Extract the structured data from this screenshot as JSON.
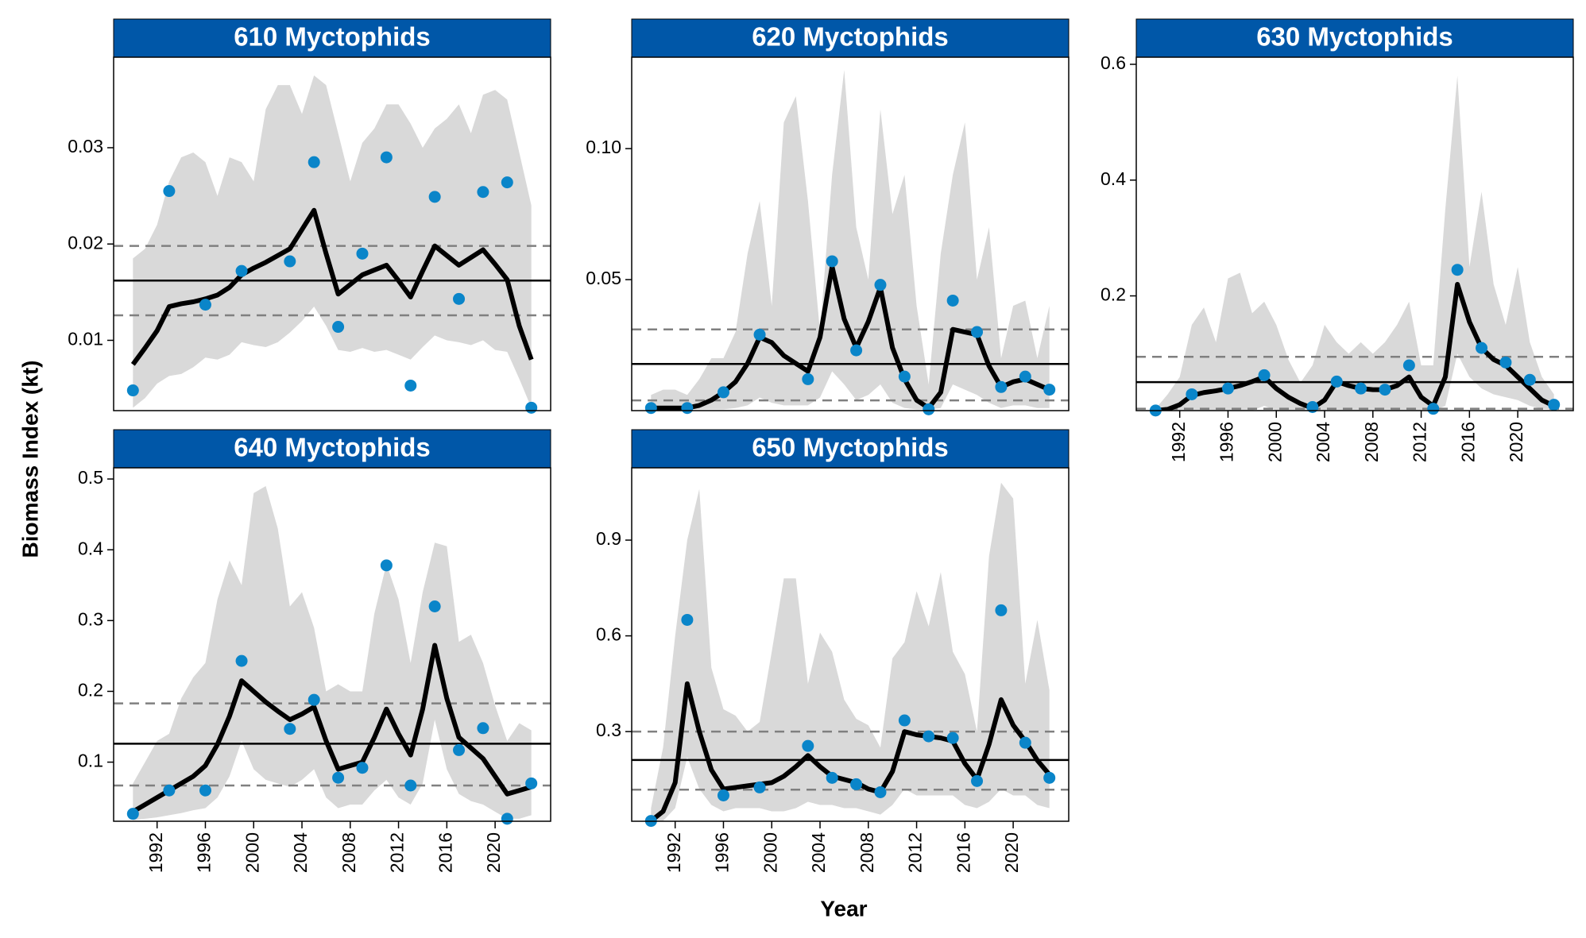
{
  "ylabel": "Biomass Index (kt)",
  "xlabel": "Year",
  "chart_data": [
    {
      "type": "line",
      "title": "610 Myctophids",
      "x": [
        1990,
        1991,
        1992,
        1993,
        1994,
        1995,
        1996,
        1997,
        1998,
        1999,
        2000,
        2001,
        2002,
        2003,
        2004,
        2005,
        2006,
        2007,
        2008,
        2009,
        2010,
        2011,
        2012,
        2013,
        2014,
        2015,
        2016,
        2017,
        2018,
        2019,
        2020,
        2021,
        2022,
        2023
      ],
      "series": [
        {
          "color": "#000000",
          "values": [
            0.0075,
            0.0092,
            0.011,
            0.0135,
            0.0138,
            0.014,
            0.0143,
            0.0147,
            0.0155,
            0.0168,
            0.0175,
            0.0181,
            0.0188,
            0.0195,
            0.0215,
            0.0235,
            0.019,
            0.0148,
            0.0158,
            0.0168,
            0.0173,
            0.0178,
            0.0162,
            0.0145,
            0.0172,
            0.0198,
            0.0188,
            0.0178,
            0.0186,
            0.0194,
            0.0179,
            0.0163,
            0.0115,
            0.008
          ]
        }
      ],
      "band": {
        "color": "#d9d9d9",
        "upper": [
          0.0185,
          0.0195,
          0.022,
          0.0265,
          0.029,
          0.0295,
          0.0285,
          0.025,
          0.029,
          0.0285,
          0.0265,
          0.034,
          0.0365,
          0.0365,
          0.0335,
          0.0375,
          0.0365,
          0.0315,
          0.0265,
          0.0305,
          0.032,
          0.0345,
          0.0345,
          0.0325,
          0.03,
          0.032,
          0.033,
          0.0345,
          0.0315,
          0.0355,
          0.036,
          0.035,
          0.0295,
          0.024
        ],
        "lower": [
          0.003,
          0.004,
          0.0055,
          0.0063,
          0.0065,
          0.0072,
          0.0082,
          0.008,
          0.0085,
          0.0098,
          0.0095,
          0.0093,
          0.0098,
          0.0108,
          0.012,
          0.0135,
          0.0115,
          0.009,
          0.0088,
          0.0092,
          0.0088,
          0.009,
          0.0085,
          0.008,
          0.0093,
          0.0105,
          0.01,
          0.0098,
          0.0095,
          0.01,
          0.009,
          0.0088,
          0.006,
          0.003
        ]
      },
      "points": {
        "color": "#0a85c9",
        "x": [
          1990,
          1993,
          1996,
          1999,
          2003,
          2005,
          2007,
          2009,
          2011,
          2013,
          2015,
          2017,
          2019,
          2021,
          2023
        ],
        "values": [
          0.0048,
          0.0255,
          0.0137,
          0.0172,
          0.0182,
          0.0285,
          0.0114,
          0.019,
          0.029,
          0.0053,
          0.0249,
          0.0143,
          0.0254,
          0.0264,
          0.003
        ]
      },
      "mean": 0.0162,
      "sd_lines": [
        0.0198,
        0.0126
      ],
      "xlim": [
        1988.4,
        2024.6
      ],
      "ylim": [
        0.0027,
        0.0394
      ],
      "yticks": [
        0.01,
        0.02,
        0.03
      ]
    },
    {
      "type": "line",
      "title": "620 Myctophids",
      "x": [
        1990,
        1991,
        1992,
        1993,
        1994,
        1995,
        1996,
        1997,
        1998,
        1999,
        2000,
        2001,
        2002,
        2003,
        2004,
        2005,
        2006,
        2007,
        2008,
        2009,
        2010,
        2011,
        2012,
        2013,
        2014,
        2015,
        2016,
        2017,
        2018,
        2019,
        2020,
        2021,
        2022,
        2023
      ],
      "series": [
        {
          "color": "#000000",
          "values": [
            0.001,
            0.001,
            0.001,
            0.001,
            0.002,
            0.004,
            0.007,
            0.011,
            0.018,
            0.028,
            0.026,
            0.021,
            0.018,
            0.015,
            0.028,
            0.055,
            0.035,
            0.024,
            0.034,
            0.047,
            0.024,
            0.012,
            0.004,
            0.001,
            0.007,
            0.031,
            0.03,
            0.029,
            0.017,
            0.009,
            0.011,
            0.012,
            0.01,
            0.008
          ]
        }
      ],
      "band": {
        "color": "#d9d9d9",
        "upper": [
          0.006,
          0.008,
          0.008,
          0.006,
          0.012,
          0.02,
          0.02,
          0.03,
          0.06,
          0.08,
          0.04,
          0.11,
          0.12,
          0.08,
          0.03,
          0.09,
          0.13,
          0.07,
          0.05,
          0.115,
          0.075,
          0.09,
          0.04,
          0.01,
          0.06,
          0.09,
          0.11,
          0.05,
          0.07,
          0.02,
          0.04,
          0.042,
          0.02,
          0.04
        ],
        "lower": [
          0.0005,
          0.0005,
          0.0005,
          0.0005,
          0.0005,
          0.0005,
          0.0005,
          0.001,
          0.002,
          0.005,
          0.003,
          0.002,
          0.002,
          0.002,
          0.005,
          0.015,
          0.01,
          0.004,
          0.006,
          0.01,
          0.003,
          0.001,
          0.0005,
          0.0005,
          0.001,
          0.01,
          0.008,
          0.006,
          0.003,
          0.001,
          0.002,
          0.002,
          0.001,
          0.001
        ]
      },
      "points": {
        "color": "#0a85c9",
        "x": [
          1990,
          1993,
          1996,
          1999,
          2003,
          2005,
          2007,
          2009,
          2011,
          2013,
          2015,
          2017,
          2019,
          2021,
          2023
        ],
        "values": [
          0.001,
          0.001,
          0.007,
          0.029,
          0.012,
          0.057,
          0.023,
          0.048,
          0.013,
          0.0005,
          0.042,
          0.03,
          0.009,
          0.013,
          0.008
        ]
      },
      "mean": 0.0178,
      "sd_lines": [
        0.031,
        0.0039
      ],
      "xlim": [
        1988.4,
        2024.6
      ],
      "ylim": [
        0.0,
        0.1349
      ],
      "yticks": [
        0.05,
        {
          "value": 0.1,
          "label": "0.10"
        }
      ]
    },
    {
      "type": "line",
      "title": "630 Myctophids",
      "x": [
        1990,
        1991,
        1992,
        1993,
        1994,
        1995,
        1996,
        1997,
        1998,
        1999,
        2000,
        2001,
        2002,
        2003,
        2004,
        2005,
        2006,
        2007,
        2008,
        2009,
        2010,
        2011,
        2012,
        2013,
        2014,
        2015,
        2016,
        2017,
        2018,
        2019,
        2020,
        2021,
        2022,
        2023
      ],
      "series": [
        {
          "color": "#000000",
          "values": [
            0.002,
            0.004,
            0.012,
            0.028,
            0.033,
            0.036,
            0.04,
            0.045,
            0.052,
            0.06,
            0.04,
            0.025,
            0.014,
            0.006,
            0.02,
            0.052,
            0.045,
            0.04,
            0.038,
            0.038,
            0.045,
            0.06,
            0.025,
            0.01,
            0.06,
            0.22,
            0.155,
            0.11,
            0.09,
            0.08,
            0.06,
            0.04,
            0.02,
            0.01
          ]
        }
      ],
      "band": {
        "color": "#d9d9d9",
        "upper": [
          0.005,
          0.03,
          0.06,
          0.15,
          0.18,
          0.12,
          0.23,
          0.24,
          0.17,
          0.19,
          0.15,
          0.09,
          0.05,
          0.08,
          0.15,
          0.12,
          0.1,
          0.12,
          0.1,
          0.12,
          0.15,
          0.19,
          0.08,
          0.08,
          0.35,
          0.58,
          0.25,
          0.38,
          0.22,
          0.15,
          0.25,
          0.12,
          0.06,
          0.03
        ],
        "lower": [
          0.002,
          0.002,
          0.002,
          0.002,
          0.002,
          0.002,
          0.002,
          0.002,
          0.002,
          0.01,
          0.002,
          0.002,
          0.002,
          0.002,
          0.002,
          0.002,
          0.002,
          0.002,
          0.002,
          0.002,
          0.002,
          0.002,
          0.002,
          0.002,
          0.01,
          0.1,
          0.06,
          0.04,
          0.03,
          0.025,
          0.02,
          0.01,
          0.005,
          0.003
        ]
      },
      "points": {
        "color": "#0a85c9",
        "x": [
          1990,
          1993,
          1996,
          1999,
          2003,
          2005,
          2007,
          2009,
          2011,
          2013,
          2015,
          2017,
          2019,
          2021,
          2023
        ],
        "values": [
          0.002,
          0.03,
          0.04,
          0.063,
          0.008,
          0.052,
          0.04,
          0.038,
          0.08,
          0.005,
          0.245,
          0.11,
          0.085,
          0.055,
          0.012
        ]
      },
      "mean": 0.051,
      "sd_lines": [
        0.0947,
        0.005
      ],
      "xlim": [
        1988.4,
        2024.6
      ],
      "ylim": [
        0.0018,
        0.6123
      ],
      "yticks": [
        0.2,
        0.4,
        0.6
      ],
      "xticks": [
        1992,
        1996,
        2000,
        2004,
        2008,
        2012,
        2016,
        2020
      ]
    },
    {
      "type": "line",
      "title": "640 Myctophids",
      "x": [
        1990,
        1991,
        1992,
        1993,
        1994,
        1995,
        1996,
        1997,
        1998,
        1999,
        2000,
        2001,
        2002,
        2003,
        2004,
        2005,
        2006,
        2007,
        2008,
        2009,
        2010,
        2011,
        2012,
        2013,
        2014,
        2015,
        2016,
        2017,
        2018,
        2019,
        2020,
        2021,
        2022,
        2023
      ],
      "series": [
        {
          "color": "#000000",
          "values": [
            0.03,
            0.04,
            0.05,
            0.06,
            0.07,
            0.08,
            0.095,
            0.125,
            0.165,
            0.215,
            0.2,
            0.185,
            0.172,
            0.16,
            0.168,
            0.178,
            0.13,
            0.09,
            0.095,
            0.1,
            0.135,
            0.175,
            0.14,
            0.11,
            0.175,
            0.265,
            0.19,
            0.135,
            0.12,
            0.105,
            0.08,
            0.055,
            0.06,
            0.065
          ]
        }
      ],
      "band": {
        "color": "#d9d9d9",
        "upper": [
          0.07,
          0.1,
          0.13,
          0.14,
          0.19,
          0.22,
          0.24,
          0.33,
          0.385,
          0.35,
          0.48,
          0.49,
          0.43,
          0.32,
          0.34,
          0.29,
          0.2,
          0.21,
          0.2,
          0.2,
          0.31,
          0.38,
          0.33,
          0.24,
          0.34,
          0.41,
          0.405,
          0.27,
          0.28,
          0.24,
          0.18,
          0.13,
          0.155,
          0.145
        ],
        "lower": [
          0.018,
          0.02,
          0.022,
          0.025,
          0.028,
          0.032,
          0.035,
          0.05,
          0.08,
          0.13,
          0.09,
          0.075,
          0.07,
          0.065,
          0.075,
          0.09,
          0.05,
          0.035,
          0.04,
          0.04,
          0.06,
          0.075,
          0.05,
          0.04,
          0.07,
          0.16,
          0.09,
          0.055,
          0.045,
          0.04,
          0.03,
          0.02,
          0.02,
          0.025
        ]
      },
      "points": {
        "color": "#0a85c9",
        "x": [
          1990,
          1993,
          1996,
          1999,
          2003,
          2005,
          2007,
          2009,
          2011,
          2013,
          2015,
          2017,
          2019,
          2021,
          2023
        ],
        "values": [
          0.027,
          0.06,
          0.06,
          0.243,
          0.147,
          0.188,
          0.078,
          0.092,
          0.378,
          0.067,
          0.32,
          0.117,
          0.148,
          0.02,
          0.07
        ]
      },
      "mean": 0.126,
      "sd_lines": [
        0.183,
        0.067
      ],
      "xlim": [
        1988.4,
        2024.6
      ],
      "ylim": [
        0.0165,
        0.5158
      ],
      "yticks": [
        0.1,
        0.2,
        0.3,
        0.4,
        0.5
      ],
      "xticks": [
        1992,
        1996,
        2000,
        2004,
        2008,
        2012,
        2016,
        2020
      ]
    },
    {
      "type": "line",
      "title": "650 Myctophids",
      "x": [
        1990,
        1991,
        1992,
        1993,
        1994,
        1995,
        1996,
        1997,
        1998,
        1999,
        2000,
        2001,
        2002,
        2003,
        2004,
        2005,
        2006,
        2007,
        2008,
        2009,
        2010,
        2011,
        2012,
        2013,
        2014,
        2015,
        2016,
        2017,
        2018,
        2019,
        2020,
        2021,
        2022,
        2023
      ],
      "series": [
        {
          "color": "#000000",
          "values": [
            0.02,
            0.05,
            0.14,
            0.45,
            0.3,
            0.18,
            0.12,
            0.125,
            0.13,
            0.135,
            0.14,
            0.16,
            0.19,
            0.225,
            0.19,
            0.16,
            0.15,
            0.14,
            0.12,
            0.11,
            0.175,
            0.3,
            0.29,
            0.285,
            0.28,
            0.27,
            0.2,
            0.15,
            0.26,
            0.4,
            0.32,
            0.27,
            0.21,
            0.165
          ]
        }
      ],
      "band": {
        "color": "#d9d9d9",
        "upper": [
          0.06,
          0.25,
          0.6,
          0.9,
          1.06,
          0.5,
          0.37,
          0.35,
          0.3,
          0.33,
          0.55,
          0.78,
          0.78,
          0.45,
          0.61,
          0.55,
          0.4,
          0.34,
          0.32,
          0.25,
          0.53,
          0.58,
          0.74,
          0.63,
          0.8,
          0.55,
          0.48,
          0.3,
          0.85,
          1.08,
          1.03,
          0.45,
          0.65,
          0.43
        ],
        "lower": [
          0.01,
          0.02,
          0.06,
          0.22,
          0.12,
          0.07,
          0.05,
          0.06,
          0.06,
          0.06,
          0.05,
          0.05,
          0.06,
          0.08,
          0.07,
          0.07,
          0.06,
          0.06,
          0.05,
          0.04,
          0.07,
          0.12,
          0.1,
          0.1,
          0.1,
          0.1,
          0.07,
          0.06,
          0.08,
          0.12,
          0.1,
          0.1,
          0.07,
          0.06
        ]
      },
      "points": {
        "color": "#0a85c9",
        "x": [
          1990,
          1993,
          1996,
          1999,
          2003,
          2005,
          2007,
          2009,
          2011,
          2013,
          2015,
          2017,
          2019,
          2021,
          2023
        ],
        "values": [
          0.02,
          0.65,
          0.1,
          0.125,
          0.255,
          0.155,
          0.135,
          0.11,
          0.335,
          0.285,
          0.28,
          0.145,
          0.68,
          0.265,
          0.155
        ]
      },
      "mean": 0.211,
      "sd_lines": [
        0.3,
        0.118
      ],
      "xlim": [
        1988.4,
        2024.6
      ],
      "ylim": [
        0.019,
        1.1266
      ],
      "yticks": [
        0.3,
        0.6,
        0.9
      ],
      "xticks": [
        1992,
        1996,
        2000,
        2004,
        2008,
        2012,
        2016,
        2020
      ]
    }
  ]
}
